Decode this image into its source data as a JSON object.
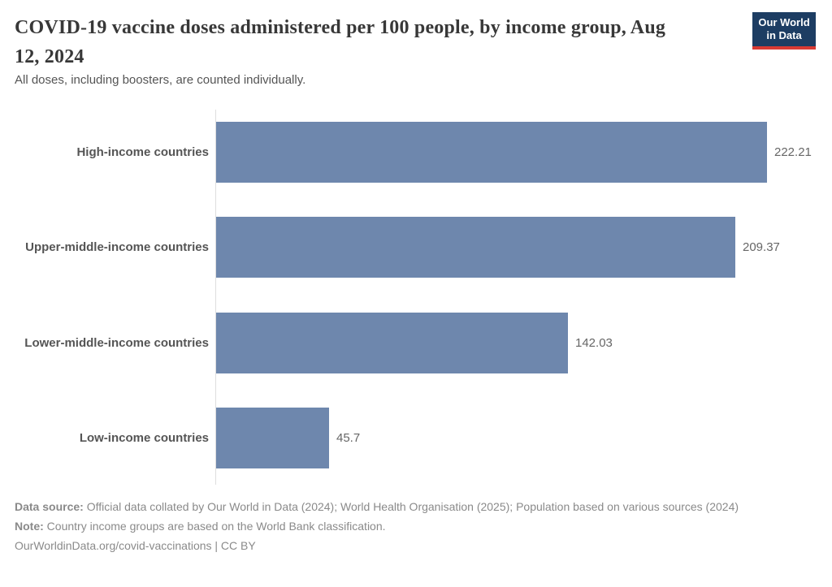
{
  "header": {
    "title": "COVID-19 vaccine doses administered per 100 people, by income group, Aug 12, 2024",
    "subtitle": "All doses, including boosters, are counted individually.",
    "logo": {
      "line1": "Our World",
      "line2": "in Data"
    }
  },
  "chart_data": {
    "type": "bar",
    "orientation": "horizontal",
    "title": "COVID-19 vaccine doses administered per 100 people, by income group, Aug 12, 2024",
    "categories": [
      "High-income countries",
      "Upper-middle-income countries",
      "Lower-middle-income countries",
      "Low-income countries"
    ],
    "values": [
      222.21,
      209.37,
      142.03,
      45.7
    ],
    "value_labels": [
      "222.21",
      "209.37",
      "142.03",
      "45.7"
    ],
    "xlabel": "",
    "ylabel": "",
    "xlim": [
      0,
      222.21
    ],
    "grid": false,
    "legend": "none",
    "bar_color": "#6e87ad"
  },
  "footer": {
    "data_source_label": "Data source:",
    "data_source_text": " Official data collated by Our World in Data (2024); World Health Organisation (2025); Population based on various sources (2024)",
    "note_label": "Note:",
    "note_text": " Country income groups are based on the World Bank classification.",
    "citation": "OurWorldinData.org/covid-vaccinations | CC BY"
  },
  "colors": {
    "bar": "#6e87ad",
    "axis_line": "#dedede",
    "title_text": "#383838",
    "subtitle_text": "#555555",
    "value_text": "#666666",
    "footer_text": "#8a8a8a",
    "logo_bg": "#1d3d63",
    "logo_accent": "#d93a34"
  }
}
